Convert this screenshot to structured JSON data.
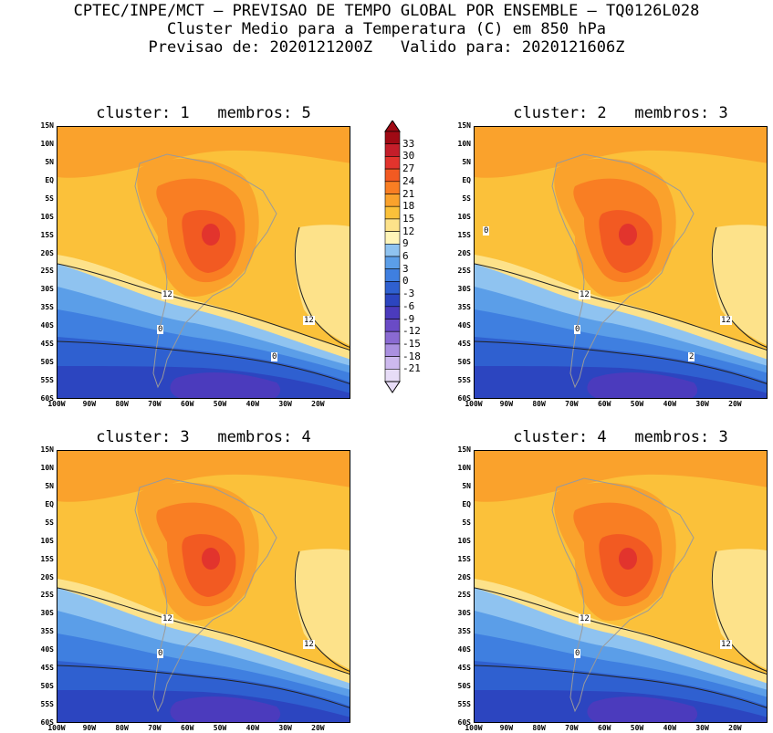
{
  "header": {
    "line1": "CPTEC/INPE/MCT – PREVISAO DE TEMPO GLOBAL POR ENSEMBLE – TQ0126L028",
    "line2": "Cluster Medio para a Temperatura (C) em 850 hPa",
    "line3": "Previsao de: 2020121200Z   Valido para: 2020121606Z"
  },
  "lat_ticks": [
    "15N",
    "10N",
    "5N",
    "EQ",
    "5S",
    "10S",
    "15S",
    "20S",
    "25S",
    "30S",
    "35S",
    "40S",
    "45S",
    "50S",
    "55S",
    "60S"
  ],
  "lon_ticks": [
    "100W",
    "90W",
    "80W",
    "70W",
    "60W",
    "50W",
    "40W",
    "30W",
    "20W"
  ],
  "colorbar": {
    "levels": [
      "33",
      "30",
      "27",
      "24",
      "21",
      "18",
      "15",
      "12",
      "9",
      "6",
      "3",
      "0",
      "-3",
      "-6",
      "-9",
      "-12",
      "-15",
      "-18",
      "-21"
    ],
    "colors": [
      "#a00a14",
      "#c41e2a",
      "#e2342d",
      "#f25a22",
      "#f97e23",
      "#faa22c",
      "#fbc13a",
      "#fde28a",
      "#fff5b8",
      "#8fc3f0",
      "#5b9ee8",
      "#3f7fe0",
      "#2f60d0",
      "#2c45c0",
      "#4b3bbd",
      "#6a4bc6",
      "#8a6ad2",
      "#aa90e0",
      "#cdb9ee",
      "#e7dcf7"
    ]
  },
  "panels": [
    {
      "title": "cluster: 1   membros: 5",
      "contour_labels": [
        "12",
        "12",
        "0",
        "0"
      ]
    },
    {
      "title": "cluster: 2   membros: 3",
      "contour_labels": [
        "12",
        "12",
        "0",
        "2",
        "0"
      ]
    },
    {
      "title": "cluster: 3   membros: 4",
      "contour_labels": [
        "12",
        "12",
        "0"
      ]
    },
    {
      "title": "cluster: 4   membros: 3",
      "contour_labels": [
        "12",
        "12",
        "0"
      ]
    }
  ]
}
